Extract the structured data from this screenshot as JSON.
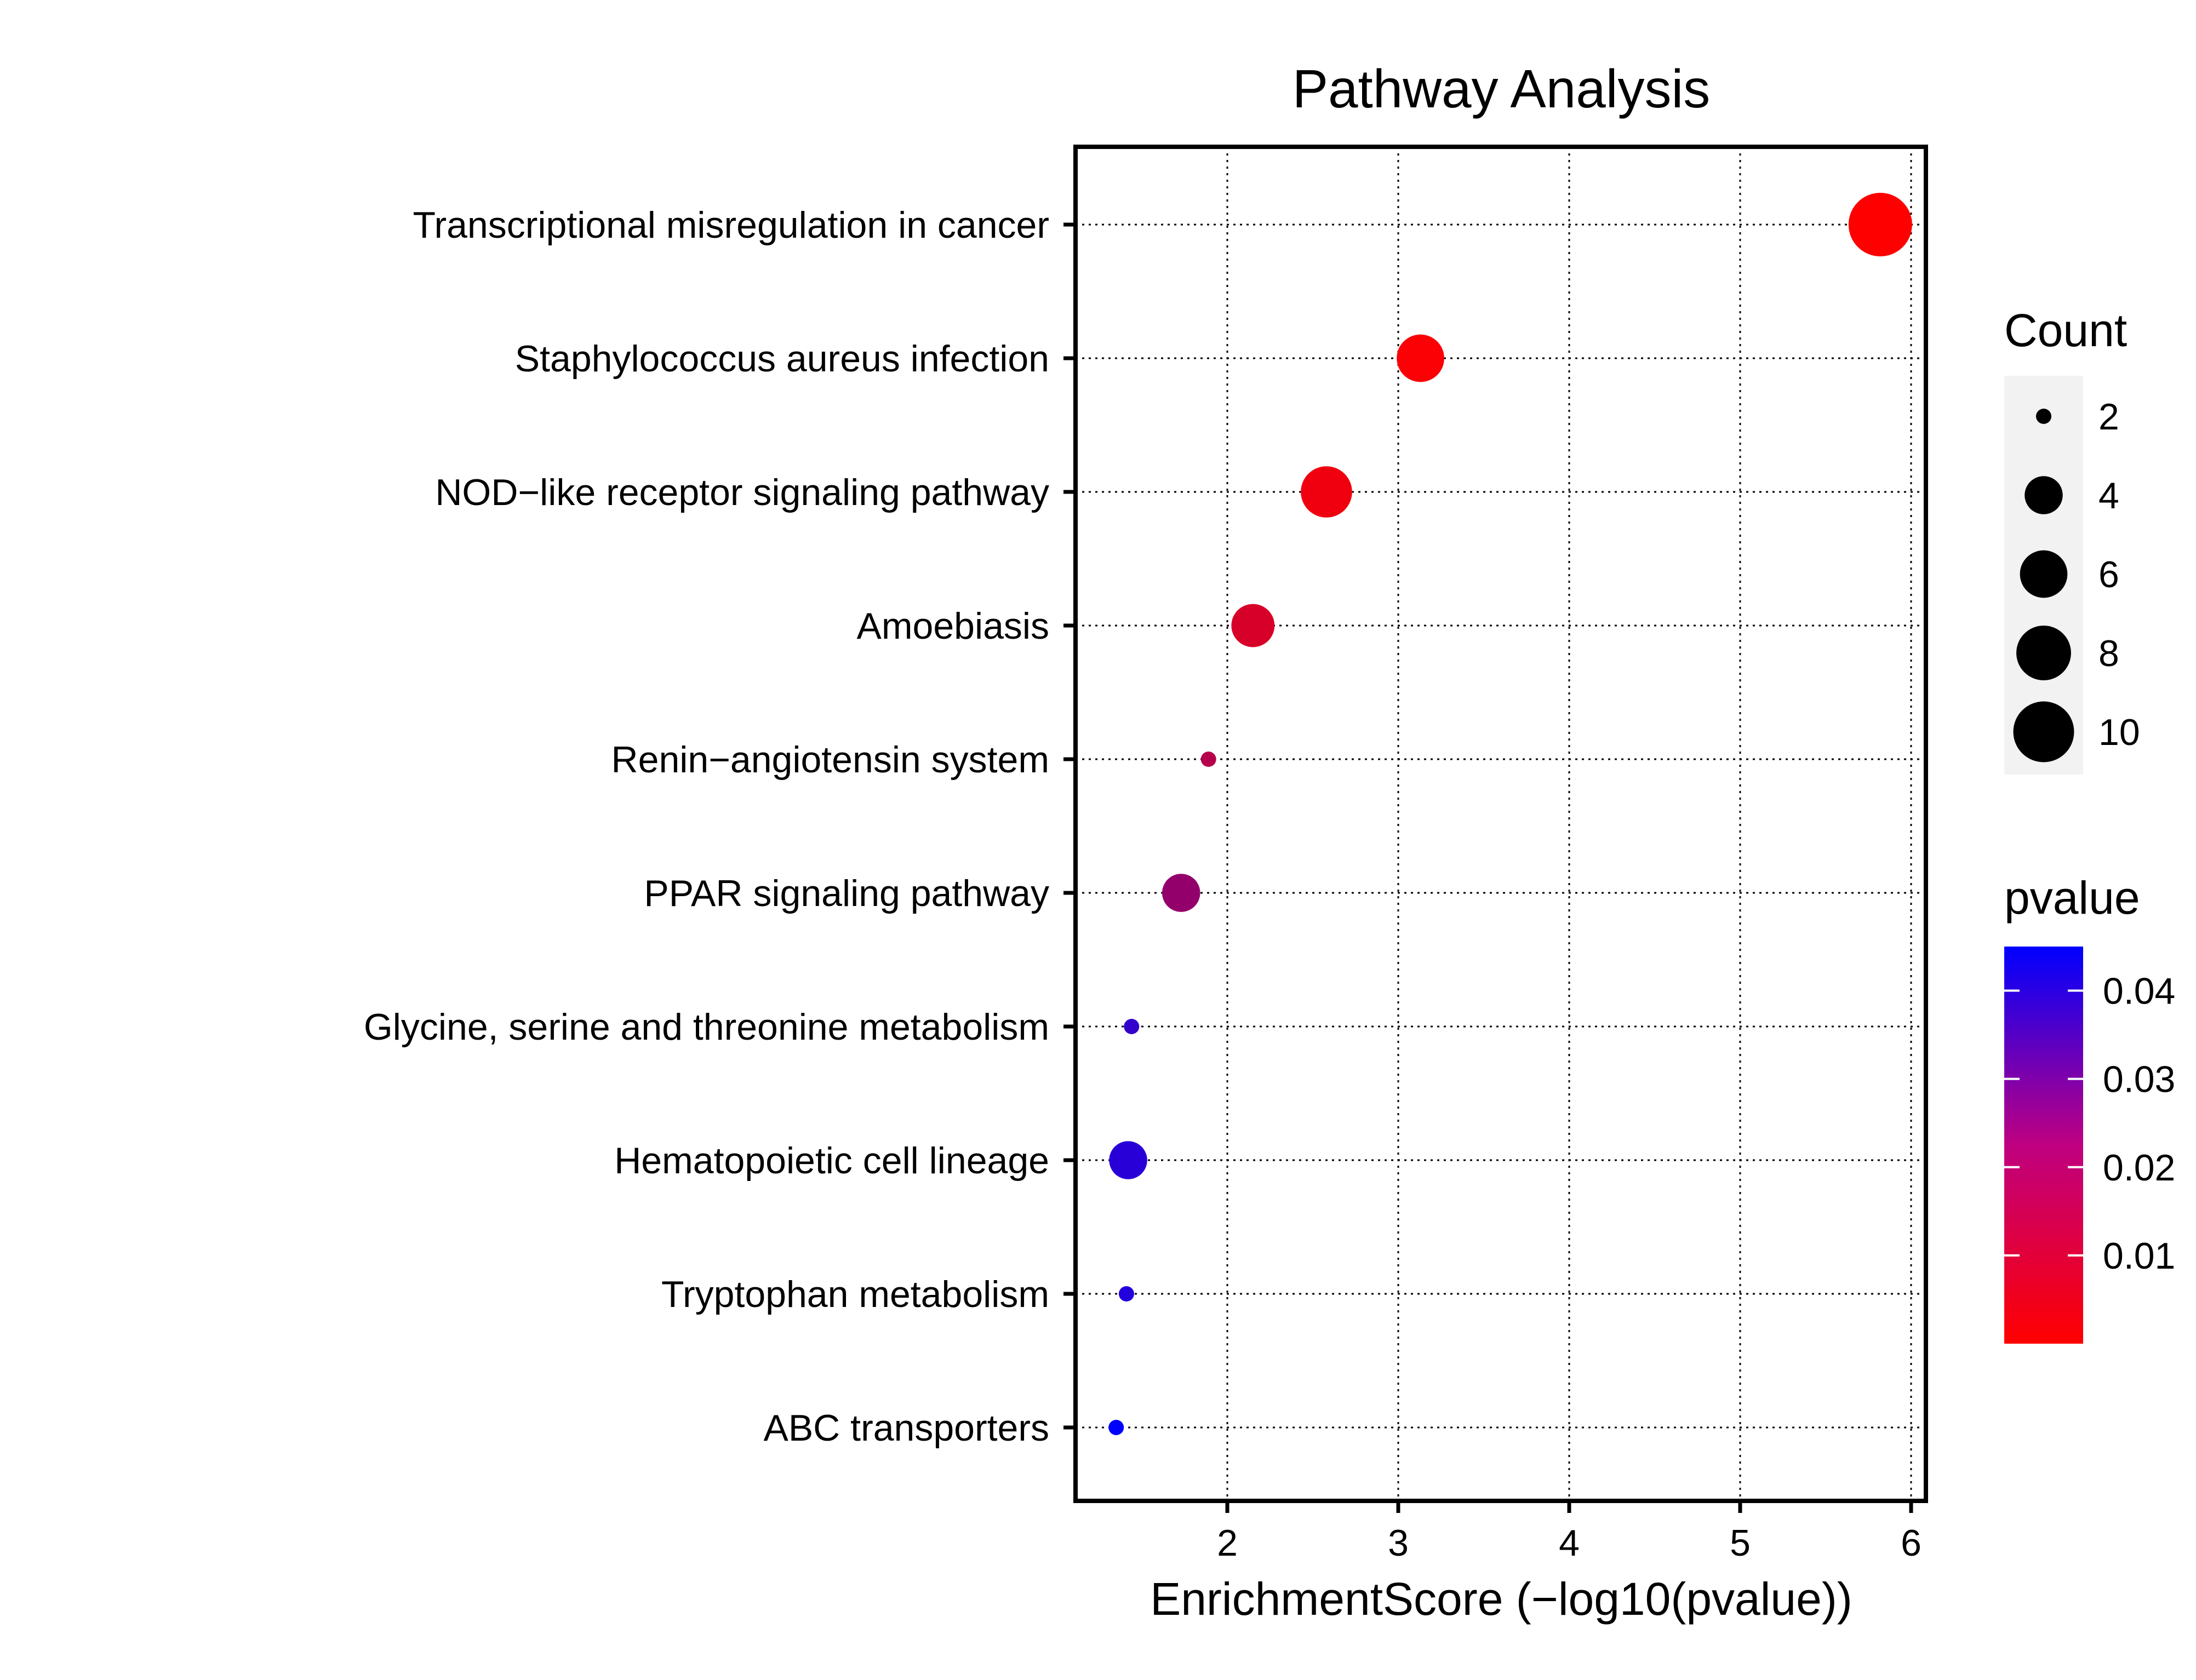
{
  "chart_data": {
    "type": "scatter",
    "title": "Pathway Analysis",
    "xlabel": "EnrichmentScore (−log10(pvalue))",
    "ylabel": "",
    "xlim": [
      1.1,
      6.1
    ],
    "xticks": [
      2,
      3,
      4,
      5,
      6
    ],
    "grid": true,
    "categories": [
      "Transcriptional misregulation in cancer",
      "Staphylococcus aureus infection",
      "NOD−like receptor signaling pathway",
      "Amoebiasis",
      "Renin−angiotensin system",
      "PPAR signaling pathway",
      "Glycine, serine and threonine metabolism",
      "Hematopoietic cell lineage",
      "Tryptophan metabolism",
      "ABC transporters"
    ],
    "points": [
      {
        "pathway": "Transcriptional misregulation in cancer",
        "x": 5.82,
        "count": 11,
        "pvalue": 1.5e-06
      },
      {
        "pathway": "Staphylococcus aureus infection",
        "x": 3.13,
        "count": 6,
        "pvalue": 0.00074
      },
      {
        "pathway": "NOD−like receptor signaling pathway",
        "x": 2.58,
        "count": 7,
        "pvalue": 0.0026
      },
      {
        "pathway": "Amoebiasis",
        "x": 2.15,
        "count": 5,
        "pvalue": 0.0071
      },
      {
        "pathway": "Renin−angiotensin system",
        "x": 1.89,
        "count": 2,
        "pvalue": 0.013
      },
      {
        "pathway": "PPAR signaling pathway",
        "x": 1.73,
        "count": 4,
        "pvalue": 0.019
      },
      {
        "pathway": "Glycine, serine and threonine metabolism",
        "x": 1.44,
        "count": 2,
        "pvalue": 0.036
      },
      {
        "pathway": "Hematopoietic cell lineage",
        "x": 1.42,
        "count": 4,
        "pvalue": 0.038
      },
      {
        "pathway": "Tryptophan metabolism",
        "x": 1.41,
        "count": 2,
        "pvalue": 0.039
      },
      {
        "pathway": "ABC transporters",
        "x": 1.35,
        "count": 2,
        "pvalue": 0.045
      }
    ],
    "size_legend": {
      "title": "Count",
      "values": [
        2,
        4,
        6,
        8,
        10
      ]
    },
    "color_legend": {
      "title": "pvalue",
      "range": [
        1.5e-06,
        0.045
      ],
      "ticks": [
        0.01,
        0.02,
        0.03,
        0.04
      ],
      "low_color": "#ff0000",
      "high_color": "#0000ff"
    },
    "legend_placement": "right"
  }
}
